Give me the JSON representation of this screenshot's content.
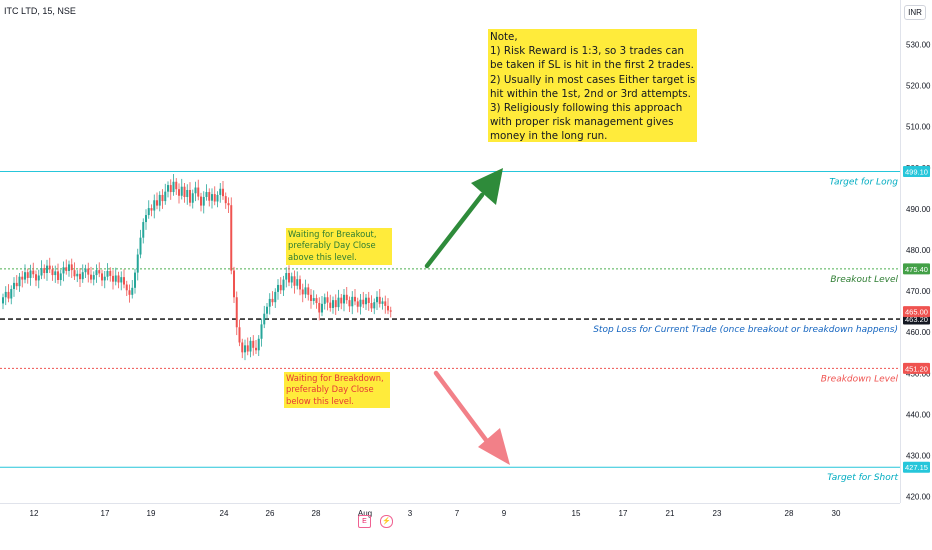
{
  "header": {
    "symbol": "ITC LTD, 15, NSE",
    "currency": "INR"
  },
  "events": {
    "earnings_icon": "E",
    "dividend_icon": "⚡"
  },
  "colors": {
    "up": "#26a69a",
    "down": "#ef5350",
    "target": "#26c6da",
    "breakout": "#4caf50",
    "breakdown": "#ef5350",
    "stop": "#000000",
    "arrow_up": "#2e8b3a",
    "arrow_down": "#f28088"
  },
  "notes": {
    "main": "Note,\n1) Risk Reward is 1:3, so 3 trades can be taken if SL is hit in the first 2 trades.\n2) Usually in most cases Either target is hit within the 1st, 2nd or 3rd attempts.\n3) Religiously following this approach with proper risk management gives money in the long run.",
    "breakout": "Waiting for Breakout, preferably Day Close above this level.",
    "breakdown": "Waiting for Breakdown, preferably Day Close below this level."
  },
  "chart_data": {
    "type": "candlestick",
    "title": "ITC LTD, 15, NSE",
    "ylim": [
      416,
      536
    ],
    "y_ticks": [
      420,
      430,
      440,
      450,
      460,
      470,
      480,
      490,
      500,
      510,
      520,
      530
    ],
    "x_ticks": [
      "12",
      "17",
      "19",
      "24",
      "26",
      "28",
      "Aug",
      "3",
      "7",
      "9",
      "15",
      "17",
      "21",
      "23",
      "28",
      "30"
    ],
    "levels": [
      {
        "name": "Target for Long",
        "value": 499.1,
        "tag": "499.10",
        "style": "solid",
        "color": "#26c6da"
      },
      {
        "name": "Breakout Level",
        "value": 475.4,
        "tag": "475.40",
        "style": "dotted",
        "color": "#4caf50"
      },
      {
        "name": "Stop Loss for Current Trade (once breakout or breakdown happens)",
        "value": 463.2,
        "tag": "463.20",
        "style": "dashed",
        "color": "#000000"
      },
      {
        "name": "Breakdown Level",
        "value": 451.2,
        "tag": "451.20",
        "style": "dotted",
        "color": "#ef5350"
      },
      {
        "name": "Target for Short",
        "value": 427.15,
        "tag": "427.15",
        "style": "solid",
        "color": "#26c6da"
      }
    ],
    "last_price": {
      "value": 465.0,
      "tag": "465.00"
    },
    "series": [
      {
        "name": "ITC",
        "close": [
          468.5,
          469.8,
          468.2,
          470.5,
          472.0,
          471.2,
          473.5,
          472.8,
          474.6,
          473.2,
          475.0,
          474.1,
          472.6,
          473.8,
          475.6,
          474.4,
          476.2,
          475.3,
          473.9,
          474.8,
          472.7,
          474.3,
          475.8,
          474.9,
          476.5,
          475.1,
          473.6,
          474.2,
          472.9,
          474.6,
          475.5,
          474.0,
          472.8,
          473.9,
          475.1,
          474.3,
          472.6,
          473.5,
          474.9,
          473.7,
          472.3,
          473.8,
          472.1,
          473.4,
          471.6,
          470.2,
          469.1,
          470.8,
          474.5,
          478.9,
          483.0,
          486.8,
          488.5,
          490.2,
          489.6,
          492.1,
          490.8,
          493.4,
          491.9,
          494.2,
          495.8,
          494.1,
          496.6,
          494.8,
          493.2,
          495.4,
          492.9,
          494.6,
          491.5,
          493.8,
          495.2,
          493.0,
          490.8,
          492.9,
          494.1,
          492.0,
          493.6,
          491.8,
          493.4,
          494.9,
          493.1,
          491.4,
          490.9,
          475.0,
          468.5,
          461.2,
          457.5,
          455.1,
          456.8,
          455.3,
          457.9,
          456.2,
          455.6,
          458.4,
          461.9,
          464.5,
          466.2,
          468.1,
          467.3,
          469.8,
          471.5,
          470.2,
          472.8,
          474.4,
          472.1,
          473.6,
          471.3,
          472.9,
          470.4,
          469.2,
          470.9,
          469.1,
          467.6,
          468.3,
          467.1,
          464.8,
          466.9,
          468.5,
          467.2,
          465.9,
          467.8,
          466.1,
          468.4,
          467.0,
          469.1,
          467.8,
          466.3,
          468.6,
          467.5,
          466.2,
          467.9,
          466.8,
          468.4,
          467.1,
          465.8,
          467.3,
          468.6,
          466.9,
          467.5,
          466.4,
          465.3,
          465.0
        ]
      }
    ]
  }
}
